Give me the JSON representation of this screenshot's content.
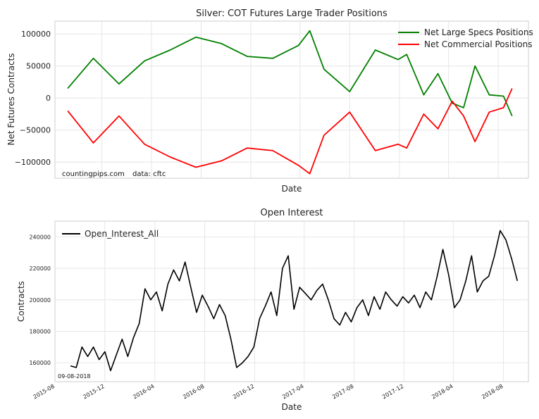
{
  "chart_data": [
    {
      "type": "line",
      "title": "Silver: COT Futures Large Trader Positions",
      "xlabel": "Date",
      "ylabel": "Net Futures Contracts",
      "ylim": [
        -125000,
        120000
      ],
      "yticks": [
        -100000,
        -50000,
        0,
        50000,
        100000
      ],
      "ytick_labels": [
        "−100000",
        "−50000",
        "0",
        "50000",
        "100000"
      ],
      "grid": true,
      "legend_position": "top-right",
      "annotations": [
        "countingpips.com",
        "data: cftc"
      ],
      "x": [
        "2015-09-08",
        "2015-11-10",
        "2016-01-12",
        "2016-03-15",
        "2016-05-17",
        "2016-07-19",
        "2016-09-20",
        "2016-11-22",
        "2017-01-24",
        "2017-03-28",
        "2017-04-25",
        "2017-05-30",
        "2017-08-01",
        "2017-10-03",
        "2017-11-28",
        "2017-12-19",
        "2018-01-30",
        "2018-03-06",
        "2018-04-10",
        "2018-05-08",
        "2018-06-05",
        "2018-07-10",
        "2018-08-14",
        "2018-09-04"
      ],
      "series": [
        {
          "name": "Net Large Specs Positions",
          "color": "#008000",
          "values": [
            15000,
            62000,
            22000,
            58000,
            75000,
            95000,
            85000,
            65000,
            62000,
            82000,
            105000,
            45000,
            10000,
            75000,
            60000,
            68000,
            5000,
            38000,
            -8000,
            -15000,
            50000,
            5000,
            3000,
            -28000
          ]
        },
        {
          "name": "Net Commercial Positions",
          "color": "#ff0000",
          "values": [
            -20000,
            -70000,
            -28000,
            -72000,
            -92000,
            -108000,
            -98000,
            -78000,
            -82000,
            -105000,
            -118000,
            -58000,
            -22000,
            -82000,
            -72000,
            -78000,
            -25000,
            -48000,
            -5000,
            -28000,
            -68000,
            -22000,
            -15000,
            15000
          ]
        }
      ]
    },
    {
      "type": "line",
      "title": "Open Interest",
      "xlabel": "Date",
      "ylabel": "Contracts",
      "ylim": [
        148000,
        250000
      ],
      "yticks": [
        160000,
        180000,
        200000,
        220000,
        240000
      ],
      "ytick_labels": [
        "160000",
        "180000",
        "200000",
        "220000",
        "240000"
      ],
      "xtick_labels": [
        "2015-08",
        "2015-12",
        "2016-04",
        "2016-08",
        "2016-12",
        "2017-04",
        "2017-08",
        "2017-12",
        "2018-04",
        "2018-08"
      ],
      "grid": true,
      "legend_position": "top-left",
      "annotations": [
        "09-08-2018"
      ],
      "series": [
        {
          "name": "Open_Interest_All",
          "color": "#000000",
          "x": [
            "2015-09-08",
            "2015-09-22",
            "2015-10-06",
            "2015-10-20",
            "2015-11-03",
            "2015-11-17",
            "2015-12-01",
            "2015-12-15",
            "2015-12-29",
            "2016-01-12",
            "2016-01-26",
            "2016-02-09",
            "2016-02-23",
            "2016-03-08",
            "2016-03-22",
            "2016-04-05",
            "2016-04-19",
            "2016-05-03",
            "2016-05-17",
            "2016-05-31",
            "2016-06-14",
            "2016-06-28",
            "2016-07-12",
            "2016-07-26",
            "2016-08-09",
            "2016-08-23",
            "2016-09-06",
            "2016-09-20",
            "2016-10-04",
            "2016-10-18",
            "2016-11-01",
            "2016-11-15",
            "2016-11-29",
            "2016-12-13",
            "2016-12-27",
            "2017-01-10",
            "2017-01-24",
            "2017-02-07",
            "2017-02-21",
            "2017-03-07",
            "2017-03-21",
            "2017-04-04",
            "2017-04-18",
            "2017-05-02",
            "2017-05-16",
            "2017-05-30",
            "2017-06-13",
            "2017-06-27",
            "2017-07-11",
            "2017-07-25",
            "2017-08-08",
            "2017-08-22",
            "2017-09-05",
            "2017-09-19",
            "2017-10-03",
            "2017-10-17",
            "2017-10-31",
            "2017-11-14",
            "2017-11-28",
            "2017-12-12",
            "2017-12-26",
            "2018-01-09",
            "2018-01-23",
            "2018-02-06",
            "2018-02-20",
            "2018-03-06",
            "2018-03-20",
            "2018-04-03",
            "2018-04-17",
            "2018-05-01",
            "2018-05-15",
            "2018-05-29",
            "2018-06-12",
            "2018-06-26",
            "2018-07-10",
            "2018-07-24",
            "2018-08-07",
            "2018-08-21",
            "2018-09-04"
          ],
          "values": [
            158000,
            157000,
            170000,
            164000,
            170000,
            162000,
            167000,
            155000,
            165000,
            175000,
            164000,
            176000,
            185000,
            207000,
            200000,
            205000,
            193000,
            210000,
            219000,
            212000,
            224000,
            208000,
            192000,
            203000,
            196000,
            188000,
            197000,
            190000,
            175000,
            157000,
            160000,
            164000,
            170000,
            188000,
            196000,
            205000,
            190000,
            220000,
            228000,
            194000,
            208000,
            204000,
            200000,
            206000,
            210000,
            200000,
            188000,
            184000,
            192000,
            186000,
            195000,
            200000,
            190000,
            202000,
            194000,
            205000,
            200000,
            196000,
            202000,
            198000,
            203000,
            195000,
            205000,
            200000,
            215000,
            232000,
            216000,
            195000,
            200000,
            212000,
            228000,
            205000,
            212000,
            215000,
            228000,
            244000,
            238000,
            226000,
            212000
          ]
        }
      ]
    }
  ]
}
